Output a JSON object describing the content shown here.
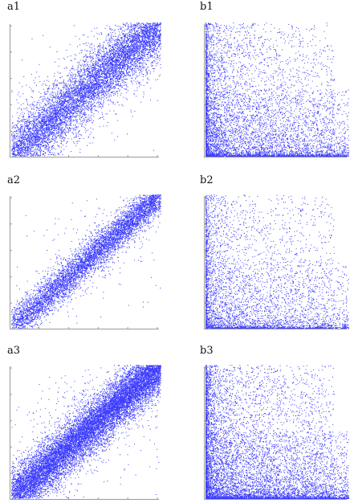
{
  "colors": {
    "points": "#1a1aff",
    "axis": "#9a9a9a"
  },
  "chart_data": [
    {
      "panel": "a1",
      "type": "scatter",
      "pattern": "diagonal",
      "xlim": [
        0,
        1
      ],
      "ylim": [
        0,
        1
      ]
    },
    {
      "panel": "b1",
      "type": "scatter",
      "pattern": "L-shape",
      "xlim": [
        0,
        1
      ],
      "ylim": [
        0,
        1
      ]
    },
    {
      "panel": "a2",
      "type": "scatter",
      "pattern": "diagonal",
      "xlim": [
        0,
        1
      ],
      "ylim": [
        0,
        1
      ]
    },
    {
      "panel": "b2",
      "type": "scatter",
      "pattern": "L-shape",
      "xlim": [
        0,
        1
      ],
      "ylim": [
        0,
        1
      ]
    },
    {
      "panel": "a3",
      "type": "scatter",
      "pattern": "diagonal",
      "xlim": [
        0,
        1
      ],
      "ylim": [
        0,
        1
      ]
    },
    {
      "panel": "b3",
      "type": "scatter",
      "pattern": "L-shape",
      "xlim": [
        0,
        1
      ],
      "ylim": [
        0,
        1
      ]
    }
  ]
}
